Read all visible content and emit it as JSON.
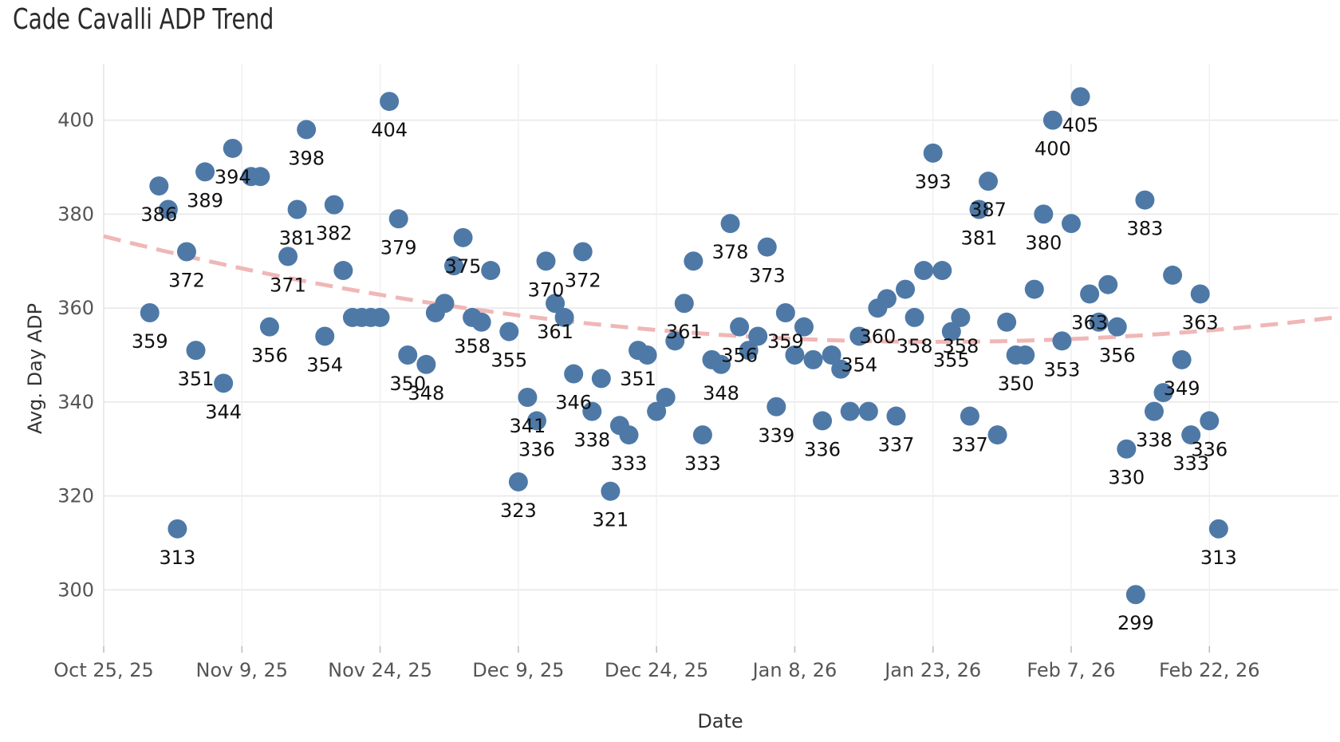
{
  "chart_data": {
    "type": "scatter",
    "title": "Cade Cavalli ADP Trend",
    "xlabel": "Date",
    "ylabel": "Avg. Day ADP",
    "x_ticks": [
      "Oct 25, 25",
      "Nov 9, 25",
      "Nov 24, 25",
      "Dec 9, 25",
      "Dec 24, 25",
      "Jan 8, 26",
      "Jan 23, 26",
      "Feb 7, 26",
      "Feb 22, 26"
    ],
    "x_range": [
      "2025-10-25",
      "2026-03-08"
    ],
    "ylim": [
      288,
      412
    ],
    "y_ticks": [
      300,
      320,
      340,
      360,
      380,
      400
    ],
    "grid": true,
    "colors": {
      "points": "#4e79a7",
      "trend": "#f0b7b7",
      "grid": "#e6e6e6"
    },
    "trend": {
      "type": "quadratic",
      "style": "dashed",
      "points": [
        [
          "2025-10-25",
          375.3
        ],
        [
          "2026-01-15",
          353
        ],
        [
          "2026-03-08",
          358.1
        ]
      ]
    },
    "points": [
      {
        "x": "2025-10-30",
        "y": 359,
        "label": "359"
      },
      {
        "x": "2025-10-31",
        "y": 386,
        "label": "386"
      },
      {
        "x": "2025-11-01",
        "y": 381,
        "label": ""
      },
      {
        "x": "2025-11-02",
        "y": 313,
        "label": "313"
      },
      {
        "x": "2025-11-03",
        "y": 372,
        "label": "372"
      },
      {
        "x": "2025-11-04",
        "y": 351,
        "label": "351"
      },
      {
        "x": "2025-11-05",
        "y": 389,
        "label": "389"
      },
      {
        "x": "2025-11-07",
        "y": 344,
        "label": "344"
      },
      {
        "x": "2025-11-08",
        "y": 394,
        "label": "394"
      },
      {
        "x": "2025-11-10",
        "y": 388,
        "label": ""
      },
      {
        "x": "2025-11-11",
        "y": 388,
        "label": ""
      },
      {
        "x": "2025-11-12",
        "y": 356,
        "label": "356"
      },
      {
        "x": "2025-11-14",
        "y": 371,
        "label": "371"
      },
      {
        "x": "2025-11-15",
        "y": 381,
        "label": "381"
      },
      {
        "x": "2025-11-16",
        "y": 398,
        "label": "398"
      },
      {
        "x": "2025-11-18",
        "y": 354,
        "label": "354"
      },
      {
        "x": "2025-11-19",
        "y": 382,
        "label": "382"
      },
      {
        "x": "2025-11-20",
        "y": 368,
        "label": ""
      },
      {
        "x": "2025-11-21",
        "y": 358,
        "label": ""
      },
      {
        "x": "2025-11-22",
        "y": 358,
        "label": ""
      },
      {
        "x": "2025-11-23",
        "y": 358,
        "label": ""
      },
      {
        "x": "2025-11-24",
        "y": 358,
        "label": ""
      },
      {
        "x": "2025-11-25",
        "y": 404,
        "label": "404"
      },
      {
        "x": "2025-11-26",
        "y": 379,
        "label": "379"
      },
      {
        "x": "2025-11-27",
        "y": 350,
        "label": "350"
      },
      {
        "x": "2025-11-29",
        "y": 348,
        "label": "348"
      },
      {
        "x": "2025-11-30",
        "y": 359,
        "label": ""
      },
      {
        "x": "2025-12-01",
        "y": 361,
        "label": ""
      },
      {
        "x": "2025-12-02",
        "y": 369,
        "label": ""
      },
      {
        "x": "2025-12-03",
        "y": 375,
        "label": "375"
      },
      {
        "x": "2025-12-04",
        "y": 358,
        "label": "358"
      },
      {
        "x": "2025-12-05",
        "y": 357,
        "label": ""
      },
      {
        "x": "2025-12-06",
        "y": 368,
        "label": ""
      },
      {
        "x": "2025-12-08",
        "y": 355,
        "label": "355"
      },
      {
        "x": "2025-12-09",
        "y": 323,
        "label": "323"
      },
      {
        "x": "2025-12-10",
        "y": 341,
        "label": "341"
      },
      {
        "x": "2025-12-11",
        "y": 336,
        "label": "336"
      },
      {
        "x": "2025-12-12",
        "y": 370,
        "label": "370"
      },
      {
        "x": "2025-12-13",
        "y": 361,
        "label": "361"
      },
      {
        "x": "2025-12-14",
        "y": 358,
        "label": ""
      },
      {
        "x": "2025-12-15",
        "y": 346,
        "label": "346"
      },
      {
        "x": "2025-12-16",
        "y": 372,
        "label": "372"
      },
      {
        "x": "2025-12-17",
        "y": 338,
        "label": "338"
      },
      {
        "x": "2025-12-18",
        "y": 345,
        "label": ""
      },
      {
        "x": "2025-12-19",
        "y": 321,
        "label": "321"
      },
      {
        "x": "2025-12-20",
        "y": 335,
        "label": ""
      },
      {
        "x": "2025-12-21",
        "y": 333,
        "label": "333"
      },
      {
        "x": "2025-12-22",
        "y": 351,
        "label": "351"
      },
      {
        "x": "2025-12-23",
        "y": 350,
        "label": ""
      },
      {
        "x": "2025-12-24",
        "y": 338,
        "label": ""
      },
      {
        "x": "2025-12-25",
        "y": 341,
        "label": ""
      },
      {
        "x": "2025-12-26",
        "y": 353,
        "label": ""
      },
      {
        "x": "2025-12-27",
        "y": 361,
        "label": "361"
      },
      {
        "x": "2025-12-28",
        "y": 370,
        "label": ""
      },
      {
        "x": "2025-12-29",
        "y": 333,
        "label": "333"
      },
      {
        "x": "2025-12-30",
        "y": 349,
        "label": ""
      },
      {
        "x": "2025-12-31",
        "y": 348,
        "label": "348"
      },
      {
        "x": "2026-01-01",
        "y": 378,
        "label": "378"
      },
      {
        "x": "2026-01-02",
        "y": 356,
        "label": "356"
      },
      {
        "x": "2026-01-03",
        "y": 351,
        "label": ""
      },
      {
        "x": "2026-01-04",
        "y": 354,
        "label": ""
      },
      {
        "x": "2026-01-05",
        "y": 373,
        "label": "373"
      },
      {
        "x": "2026-01-06",
        "y": 339,
        "label": "339"
      },
      {
        "x": "2026-01-07",
        "y": 359,
        "label": "359"
      },
      {
        "x": "2026-01-08",
        "y": 350,
        "label": ""
      },
      {
        "x": "2026-01-09",
        "y": 356,
        "label": ""
      },
      {
        "x": "2026-01-10",
        "y": 349,
        "label": ""
      },
      {
        "x": "2026-01-11",
        "y": 336,
        "label": "336"
      },
      {
        "x": "2026-01-12",
        "y": 350,
        "label": ""
      },
      {
        "x": "2026-01-13",
        "y": 347,
        "label": ""
      },
      {
        "x": "2026-01-14",
        "y": 338,
        "label": ""
      },
      {
        "x": "2026-01-15",
        "y": 354,
        "label": "354"
      },
      {
        "x": "2026-01-16",
        "y": 338,
        "label": ""
      },
      {
        "x": "2026-01-17",
        "y": 360,
        "label": "360"
      },
      {
        "x": "2026-01-18",
        "y": 362,
        "label": ""
      },
      {
        "x": "2026-01-19",
        "y": 337,
        "label": "337"
      },
      {
        "x": "2026-01-20",
        "y": 364,
        "label": ""
      },
      {
        "x": "2026-01-21",
        "y": 358,
        "label": "358"
      },
      {
        "x": "2026-01-22",
        "y": 368,
        "label": ""
      },
      {
        "x": "2026-01-23",
        "y": 393,
        "label": "393"
      },
      {
        "x": "2026-01-24",
        "y": 368,
        "label": ""
      },
      {
        "x": "2026-01-25",
        "y": 355,
        "label": "355"
      },
      {
        "x": "2026-01-26",
        "y": 358,
        "label": "358"
      },
      {
        "x": "2026-01-27",
        "y": 337,
        "label": "337"
      },
      {
        "x": "2026-01-28",
        "y": 381,
        "label": "381"
      },
      {
        "x": "2026-01-29",
        "y": 387,
        "label": "387"
      },
      {
        "x": "2026-01-30",
        "y": 333,
        "label": ""
      },
      {
        "x": "2026-01-31",
        "y": 357,
        "label": ""
      },
      {
        "x": "2026-02-01",
        "y": 350,
        "label": "350"
      },
      {
        "x": "2026-02-02",
        "y": 350,
        "label": ""
      },
      {
        "x": "2026-02-03",
        "y": 364,
        "label": ""
      },
      {
        "x": "2026-02-04",
        "y": 380,
        "label": "380"
      },
      {
        "x": "2026-02-05",
        "y": 400,
        "label": "400"
      },
      {
        "x": "2026-02-06",
        "y": 353,
        "label": "353"
      },
      {
        "x": "2026-02-07",
        "y": 378,
        "label": ""
      },
      {
        "x": "2026-02-08",
        "y": 405,
        "label": "405"
      },
      {
        "x": "2026-02-09",
        "y": 363,
        "label": "363"
      },
      {
        "x": "2026-02-10",
        "y": 357,
        "label": ""
      },
      {
        "x": "2026-02-11",
        "y": 365,
        "label": ""
      },
      {
        "x": "2026-02-12",
        "y": 356,
        "label": "356"
      },
      {
        "x": "2026-02-13",
        "y": 330,
        "label": "330"
      },
      {
        "x": "2026-02-14",
        "y": 299,
        "label": "299"
      },
      {
        "x": "2026-02-15",
        "y": 383,
        "label": "383"
      },
      {
        "x": "2026-02-16",
        "y": 338,
        "label": "338"
      },
      {
        "x": "2026-02-17",
        "y": 342,
        "label": ""
      },
      {
        "x": "2026-02-18",
        "y": 367,
        "label": ""
      },
      {
        "x": "2026-02-19",
        "y": 349,
        "label": "349"
      },
      {
        "x": "2026-02-20",
        "y": 333,
        "label": "333"
      },
      {
        "x": "2026-02-21",
        "y": 363,
        "label": "363"
      },
      {
        "x": "2026-02-22",
        "y": 336,
        "label": "336"
      },
      {
        "x": "2026-02-23",
        "y": 313,
        "label": "313"
      }
    ]
  }
}
